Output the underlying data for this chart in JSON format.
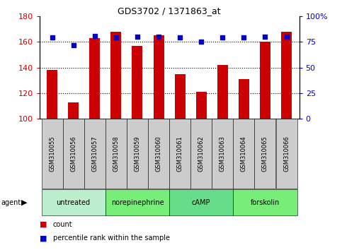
{
  "title": "GDS3702 / 1371863_at",
  "samples": [
    "GSM310055",
    "GSM310056",
    "GSM310057",
    "GSM310058",
    "GSM310059",
    "GSM310060",
    "GSM310061",
    "GSM310062",
    "GSM310063",
    "GSM310064",
    "GSM310065",
    "GSM310066"
  ],
  "counts": [
    138,
    113,
    163,
    168,
    157,
    165,
    135,
    121,
    142,
    131,
    160,
    168
  ],
  "percentiles": [
    79,
    72,
    81,
    79,
    80,
    80,
    79,
    75,
    79,
    79,
    80,
    80
  ],
  "ylim_left": [
    100,
    180
  ],
  "ylim_right": [
    0,
    100
  ],
  "yticks_left": [
    100,
    120,
    140,
    160,
    180
  ],
  "yticks_right": [
    0,
    25,
    50,
    75,
    100
  ],
  "ytick_right_labels": [
    "0",
    "25",
    "50",
    "75",
    "100%"
  ],
  "bar_color": "#cc0000",
  "dot_color": "#0000cc",
  "agents": [
    {
      "label": "untreated",
      "start": 0,
      "end": 3,
      "color": "#bbeecc"
    },
    {
      "label": "norepinephrine",
      "start": 3,
      "end": 6,
      "color": "#77ee77"
    },
    {
      "label": "cAMP",
      "start": 6,
      "end": 9,
      "color": "#66dd88"
    },
    {
      "label": "forskolin",
      "start": 9,
      "end": 12,
      "color": "#77ee77"
    }
  ],
  "sample_box_color": "#cccccc",
  "agent_label": "agent",
  "legend_count_color": "#cc0000",
  "legend_dot_color": "#0000cc"
}
